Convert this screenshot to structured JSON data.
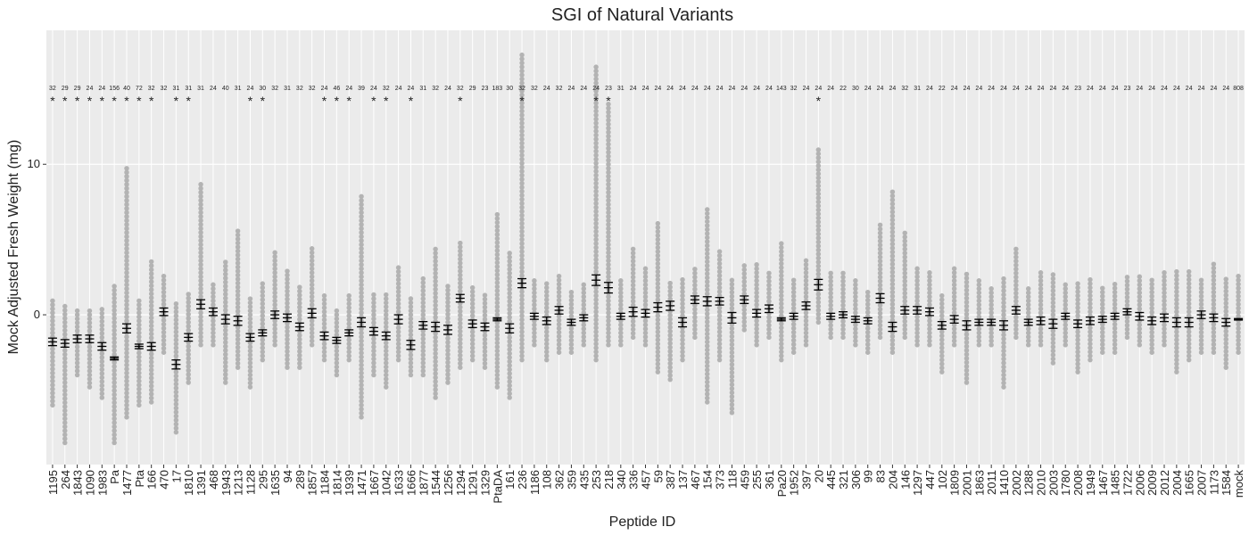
{
  "chart_data": {
    "type": "errorbar",
    "title": "SGI of Natural Variants",
    "x_label": "Peptide ID",
    "y_label": "Mock Adjusted Fresh Weight (mg)",
    "categories": [
      "1195",
      "264",
      "1843",
      "1090",
      "1983",
      "Pa",
      "1477",
      "Pta",
      "166",
      "470",
      "17",
      "1810",
      "1391",
      "468",
      "1943",
      "1213",
      "1128",
      "295",
      "1635",
      "94",
      "289",
      "1857",
      "1184",
      "1814",
      "1939",
      "1471",
      "1667",
      "1042",
      "1633",
      "1666",
      "1877",
      "1544",
      "1256",
      "1294",
      "1291",
      "1329",
      "PtaDA",
      "161",
      "236",
      "1186",
      "108",
      "362",
      "359",
      "435",
      "253",
      "218",
      "340",
      "336",
      "457",
      "59",
      "387",
      "137",
      "467",
      "154",
      "373",
      "118",
      "459",
      "255",
      "361",
      "Pa20",
      "1952",
      "397",
      "20",
      "445",
      "321",
      "306",
      "99",
      "83",
      "204",
      "146",
      "1297",
      "447",
      "102",
      "1809",
      "2001",
      "1863",
      "2011",
      "1410",
      "2002",
      "1288",
      "2010",
      "2003",
      "1780",
      "2008",
      "1949",
      "1467",
      "1485",
      "1722",
      "2006",
      "2009",
      "2012",
      "2004",
      "1665",
      "2007",
      "1173",
      "1584",
      "mock"
    ],
    "means": [
      -1.8,
      -1.9,
      -1.6,
      -1.6,
      -2.1,
      -2.9,
      -0.9,
      -2.1,
      -2.1,
      0.2,
      -3.3,
      -1.5,
      0.7,
      0.2,
      -0.3,
      -0.4,
      -1.5,
      -1.2,
      0,
      -0.2,
      -0.8,
      0.1,
      -1.4,
      -1.7,
      -1.2,
      -0.5,
      -1.1,
      -1.4,
      -0.3,
      -2.0,
      -0.7,
      -0.8,
      -1.0,
      1.1,
      -0.6,
      -0.8,
      -0.3,
      -0.9,
      2.1,
      -0.1,
      -0.4,
      0.3,
      -0.5,
      -0.2,
      2.3,
      1.8,
      -0.1,
      0.2,
      0.1,
      0.5,
      0.6,
      -0.5,
      1.0,
      0.9,
      0.9,
      -0.2,
      1.0,
      0.1,
      0.4,
      -0.3,
      -0.1,
      0.6,
      2.0,
      -0.1,
      0,
      -0.3,
      -0.4,
      1.1,
      -0.8,
      0.3,
      0.3,
      0.2,
      -0.7,
      -0.3,
      -0.7,
      -0.5,
      -0.5,
      -0.7,
      0.3,
      -0.5,
      -0.4,
      -0.6,
      -0.1,
      -0.6,
      -0.4,
      -0.3,
      -0.1,
      0.2,
      -0.1,
      -0.4,
      -0.2,
      -0.5,
      -0.5,
      0,
      -0.2,
      -0.5,
      -0.3
    ],
    "errors": [
      0.25,
      0.25,
      0.25,
      0.25,
      0.25,
      0.1,
      0.3,
      0.15,
      0.25,
      0.25,
      0.3,
      0.25,
      0.3,
      0.25,
      0.3,
      0.3,
      0.25,
      0.2,
      0.25,
      0.25,
      0.25,
      0.3,
      0.25,
      0.2,
      0.2,
      0.3,
      0.25,
      0.25,
      0.3,
      0.3,
      0.25,
      0.3,
      0.3,
      0.25,
      0.25,
      0.25,
      0.1,
      0.3,
      0.3,
      0.2,
      0.25,
      0.25,
      0.2,
      0.2,
      0.35,
      0.35,
      0.2,
      0.3,
      0.25,
      0.3,
      0.3,
      0.3,
      0.25,
      0.3,
      0.25,
      0.35,
      0.25,
      0.25,
      0.25,
      0.1,
      0.2,
      0.25,
      0.35,
      0.2,
      0.2,
      0.2,
      0.2,
      0.3,
      0.3,
      0.25,
      0.25,
      0.25,
      0.25,
      0.25,
      0.3,
      0.2,
      0.2,
      0.3,
      0.25,
      0.2,
      0.25,
      0.3,
      0.2,
      0.25,
      0.25,
      0.2,
      0.2,
      0.2,
      0.25,
      0.25,
      0.25,
      0.3,
      0.3,
      0.25,
      0.25,
      0.25,
      0.05
    ],
    "low": [
      -6,
      -8.5,
      -4,
      -4.8,
      -5.5,
      -8.5,
      -6.8,
      -6,
      -5.8,
      -2.5,
      -7.8,
      -4.5,
      -2,
      -2,
      -4.5,
      -3.5,
      -4.8,
      -3,
      -2,
      -3.5,
      -3.5,
      -2,
      -3,
      -4,
      -3,
      -6.8,
      -4,
      -4.8,
      -3,
      -4,
      -4,
      -5.5,
      -4.5,
      -3.5,
      -3,
      -3.5,
      -4.8,
      -5.5,
      -3,
      -2,
      -3,
      -2.5,
      -2.5,
      -2,
      -3,
      -2,
      -2,
      -1.5,
      -2,
      -3.8,
      -4.3,
      -3,
      -1.5,
      -5.8,
      -3,
      -6.5,
      -1,
      -2,
      -1.5,
      -3,
      -2.5,
      -2,
      -0.5,
      -1.5,
      -1.5,
      -2,
      -2.5,
      -1.5,
      -2.5,
      -1.5,
      -2,
      -2,
      -3.8,
      -2,
      -4.5,
      -2,
      -2,
      -4.8,
      -1.5,
      -2,
      -2,
      -3.2,
      -2,
      -3.8,
      -3,
      -2.5,
      -2.5,
      -1.5,
      -2,
      -2.5,
      -2,
      -3.8,
      -3,
      -2.5,
      -2.5,
      -3.5,
      -2.5
    ],
    "high": [
      1,
      0.8,
      0.5,
      0.5,
      0.5,
      2,
      9.8,
      1,
      3.6,
      2.8,
      0.9,
      1.5,
      8.7,
      2,
      3.5,
      5.7,
      1.2,
      2.3,
      4.2,
      3,
      2,
      4.5,
      1.5,
      0.5,
      1.3,
      8.1,
      1.5,
      1.5,
      3.3,
      1.2,
      2.4,
      4.5,
      2,
      4.8,
      1.8,
      1.5,
      6.9,
      4.3,
      17.4,
      2.5,
      2.3,
      2.8,
      1.5,
      2.2,
      16.5,
      14,
      2.5,
      4.5,
      3.2,
      6.1,
      2.3,
      2.5,
      3.2,
      7.2,
      4.2,
      2.5,
      3.5,
      3.4,
      3,
      4.9,
      2.5,
      3.8,
      11,
      2.9,
      2.8,
      2.5,
      1.5,
      6.1,
      8.2,
      5.6,
      3.2,
      2.9,
      1.5,
      3.3,
      2.8,
      2.3,
      1.8,
      2.6,
      4.6,
      1.8,
      3,
      2.7,
      2,
      2.2,
      2.5,
      1.8,
      2.2,
      2.6,
      2.6,
      2.5,
      2.8,
      3,
      3.1,
      2.3,
      3.5,
      2.4,
      2.7
    ],
    "n_labels": [
      32,
      29,
      29,
      24,
      24,
      156,
      40,
      72,
      32,
      32,
      31,
      31,
      31,
      24,
      40,
      31,
      24,
      30,
      32,
      31,
      32,
      32,
      24,
      46,
      24,
      39,
      24,
      32,
      24,
      24,
      31,
      32,
      24,
      32,
      29,
      23,
      183,
      30,
      32,
      32,
      24,
      32,
      24,
      24,
      24,
      23,
      31,
      24,
      24,
      24,
      24,
      24,
      24,
      24,
      24,
      24,
      24,
      24,
      24,
      143,
      32,
      24,
      24,
      24,
      22,
      30,
      24,
      24,
      24,
      32,
      31,
      24,
      22,
      24,
      24,
      24,
      24,
      24,
      24,
      24,
      24,
      24,
      24,
      23,
      24,
      24,
      24,
      23,
      24,
      24,
      24,
      24,
      24,
      24,
      24,
      24,
      808
    ],
    "significance": [
      "*",
      "*",
      "*",
      "*",
      "*",
      "*",
      "*",
      "*",
      "*",
      null,
      "*",
      "*",
      null,
      null,
      null,
      null,
      "*",
      "*",
      null,
      null,
      null,
      null,
      "*",
      "*",
      "*",
      null,
      "*",
      "*",
      null,
      "*",
      null,
      null,
      null,
      "*",
      null,
      null,
      null,
      null,
      "*",
      null,
      null,
      null,
      null,
      null,
      "*",
      "*",
      null,
      null,
      null,
      null,
      null,
      null,
      null,
      null,
      null,
      null,
      null,
      null,
      null,
      null,
      null,
      null,
      "*",
      null,
      null,
      null,
      null,
      null,
      null,
      null,
      null,
      null,
      null,
      null,
      null,
      null,
      null,
      null,
      null,
      null,
      null,
      null,
      null,
      null,
      null,
      null,
      null,
      null,
      null,
      null,
      null,
      null,
      null,
      null,
      null,
      null,
      null
    ],
    "point_color": "#b3b3b3",
    "bar_color": "#000000",
    "ylim": [
      -9.95,
      18.9
    ],
    "yticks": [
      0,
      10
    ],
    "grid": true
  }
}
